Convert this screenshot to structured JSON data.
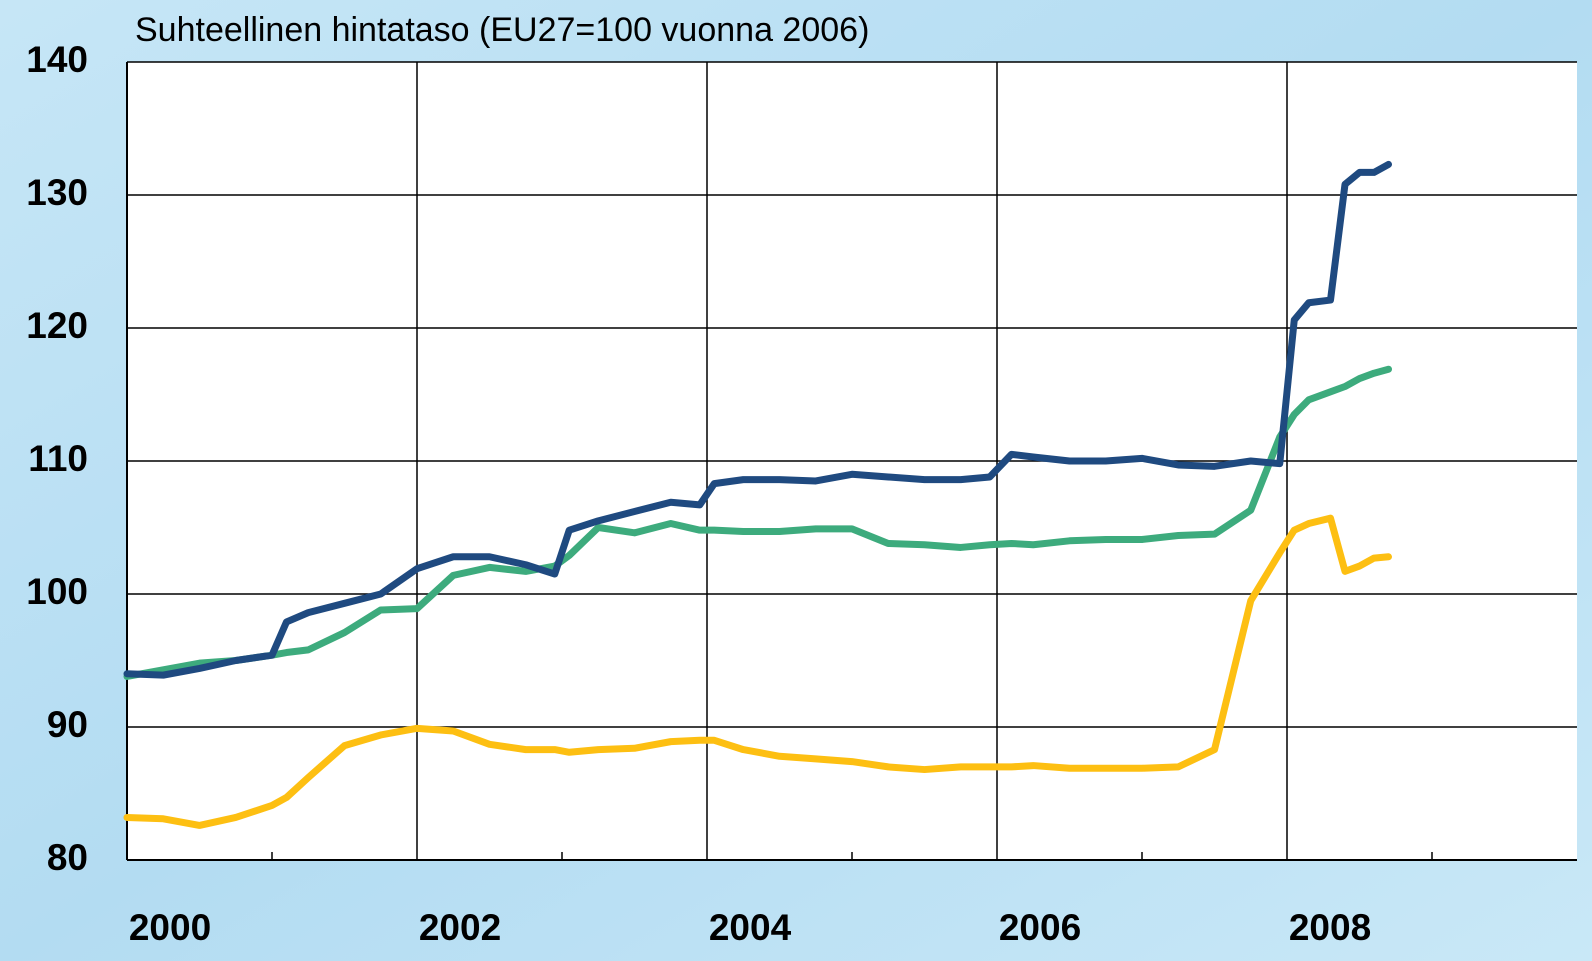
{
  "chart_data": {
    "type": "line",
    "title": "Suhteellinen hintataso (EU27=100 vuonna 2006)",
    "xlim": [
      2000,
      2010
    ],
    "xticks": [
      2000,
      2002,
      2004,
      2006,
      2008
    ],
    "x_minor_ticks": [
      2001,
      2003,
      2005,
      2007,
      2009
    ],
    "ylim": [
      80,
      140
    ],
    "yticks": [
      80,
      90,
      100,
      110,
      120,
      130,
      140
    ],
    "grid": true,
    "x": [
      2000.0,
      2000.25,
      2000.5,
      2000.75,
      2001.0,
      2001.1,
      2001.25,
      2001.5,
      2001.75,
      2002.0,
      2002.25,
      2002.5,
      2002.75,
      2002.95,
      2003.05,
      2003.25,
      2003.5,
      2003.75,
      2003.95,
      2004.05,
      2004.25,
      2004.5,
      2004.75,
      2005.0,
      2005.25,
      2005.5,
      2005.75,
      2005.95,
      2006.1,
      2006.25,
      2006.5,
      2006.75,
      2007.0,
      2007.25,
      2007.5,
      2007.75,
      2007.95,
      2008.05,
      2008.15,
      2008.3,
      2008.4,
      2008.5,
      2008.6,
      2008.7
    ],
    "series": [
      {
        "color": "#1f4a80",
        "values": [
          94.0,
          93.9,
          94.4,
          95.0,
          95.4,
          97.9,
          98.6,
          99.3,
          100.0,
          101.9,
          102.8,
          102.8,
          102.2,
          101.5,
          104.8,
          105.5,
          106.2,
          106.9,
          106.7,
          108.3,
          108.6,
          108.6,
          108.5,
          109.0,
          108.8,
          108.6,
          108.6,
          108.8,
          110.5,
          110.3,
          110.0,
          110.0,
          110.2,
          109.7,
          109.6,
          110.0,
          109.8,
          120.6,
          121.9,
          122.1,
          130.8,
          131.7,
          131.7,
          132.3
        ]
      },
      {
        "color": "#3dab7d",
        "values": [
          93.8,
          94.3,
          94.8,
          95.0,
          95.4,
          95.6,
          95.8,
          97.1,
          98.8,
          98.9,
          101.4,
          102.0,
          101.7,
          102.1,
          102.9,
          105.0,
          104.6,
          105.3,
          104.8,
          104.8,
          104.7,
          104.7,
          104.9,
          104.9,
          103.8,
          103.7,
          103.5,
          103.7,
          103.8,
          103.7,
          104.0,
          104.1,
          104.1,
          104.4,
          104.5,
          106.3,
          111.8,
          113.5,
          114.6,
          115.2,
          115.6,
          116.2,
          116.6,
          116.9
        ]
      },
      {
        "color": "#fdbf12",
        "values": [
          83.2,
          83.1,
          82.6,
          83.2,
          84.1,
          84.7,
          86.2,
          88.6,
          89.4,
          89.9,
          89.7,
          88.7,
          88.3,
          88.3,
          88.1,
          88.3,
          88.4,
          88.9,
          89.0,
          89.0,
          88.3,
          87.8,
          87.6,
          87.4,
          87.0,
          86.8,
          87.0,
          87.0,
          87.0,
          87.1,
          86.9,
          86.9,
          86.9,
          87.0,
          88.3,
          99.5,
          103.1,
          104.8,
          105.3,
          105.7,
          101.7,
          102.1,
          102.7,
          102.8
        ]
      }
    ]
  }
}
